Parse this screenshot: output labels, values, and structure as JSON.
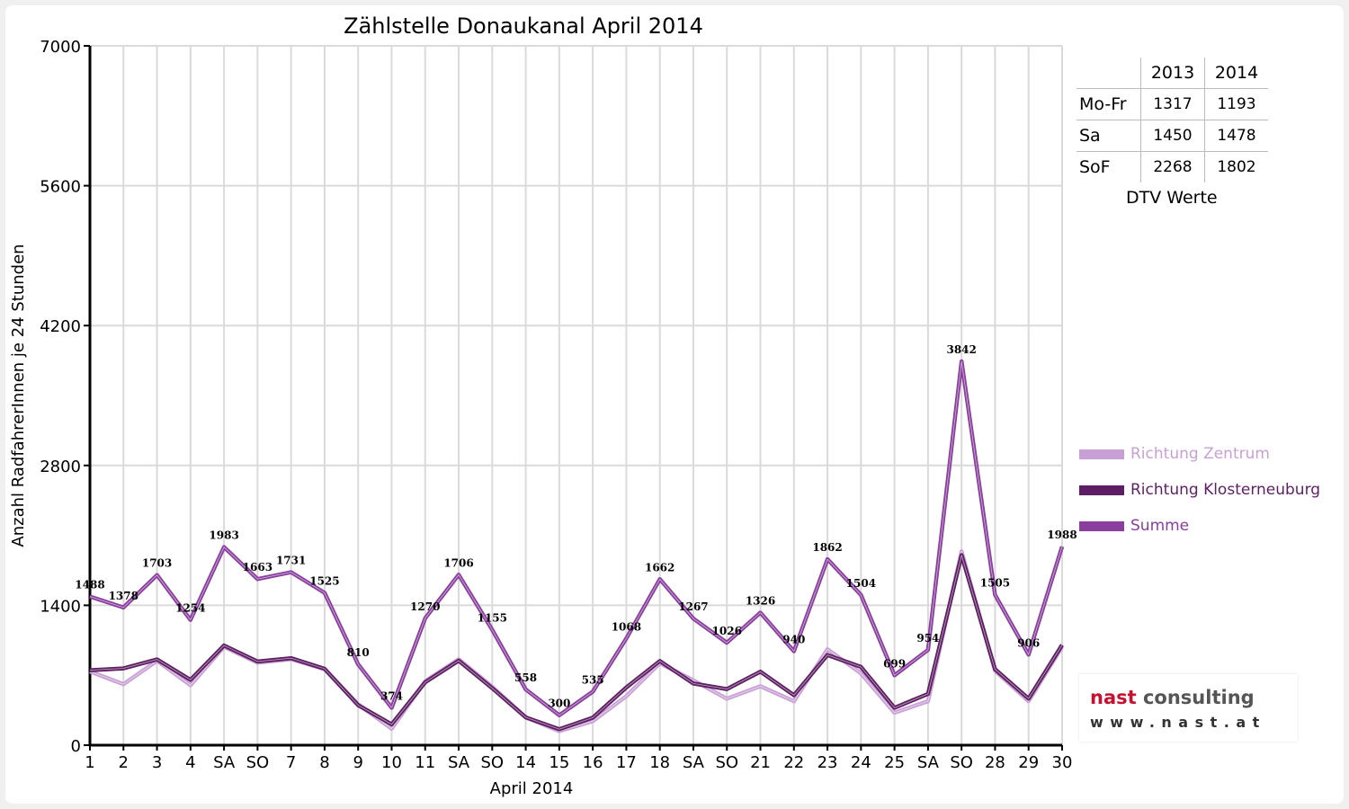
{
  "chart_data": {
    "type": "line",
    "title": "Zählstelle Donaukanal April 2014",
    "xlabel": "April 2014",
    "ylabel": "Anzahl RadfahrerInnen je 24 Stunden",
    "ylim": [
      0,
      7000
    ],
    "yticks": [
      "0",
      "1400",
      "2800",
      "4200",
      "5600",
      "7000"
    ],
    "grid": true,
    "legend_position": "right",
    "categories": [
      "1",
      "2",
      "3",
      "4",
      "SA",
      "SO",
      "7",
      "8",
      "9",
      "10",
      "11",
      "SA",
      "SO",
      "14",
      "15",
      "16",
      "17",
      "18",
      "SA",
      "SO",
      "21",
      "22",
      "23",
      "24",
      "25",
      "SA",
      "SO",
      "28",
      "29",
      "30"
    ],
    "category_colors": [
      "#000000",
      "#000000",
      "#000000",
      "#000000",
      "#000000",
      "#dd0000",
      "#000000",
      "#000000",
      "#000000",
      "#000000",
      "#000000",
      "#000000",
      "#dd0000",
      "#000000",
      "#000000",
      "#000000",
      "#000000",
      "#000000",
      "#000000",
      "#dd0000",
      "#dd0000",
      "#000000",
      "#000000",
      "#000000",
      "#000000",
      "#000000",
      "#dd0000",
      "#000000",
      "#000000",
      "#000000"
    ],
    "series": [
      {
        "name": "Richtung Zentrum",
        "color": "#c9a0d6",
        "values": [
          738,
          610,
          845,
          600,
          985,
          825,
          860,
          760,
          410,
          165,
          640,
          860,
          585,
          280,
          140,
          240,
          490,
          820,
          650,
          465,
          590,
          440,
          960,
          720,
          325,
          440,
          1940,
          745,
          440,
          985
        ]
      },
      {
        "name": "Richtung Klosterneuburg",
        "color": "#5e1e63",
        "values": [
          750,
          768,
          858,
          654,
          998,
          838,
          871,
          765,
          400,
          209,
          630,
          846,
          570,
          278,
          160,
          275,
          578,
          842,
          617,
          561,
          736,
          500,
          902,
          784,
          374,
          514,
          1902,
          760,
          466,
          1003
        ]
      },
      {
        "name": "Summe",
        "color": "#8a3e9e",
        "values": [
          1488,
          1378,
          1703,
          1254,
          1983,
          1663,
          1731,
          1525,
          810,
          374,
          1270,
          1706,
          1155,
          558,
          300,
          535,
          1068,
          1662,
          1267,
          1026,
          1326,
          940,
          1862,
          1504,
          699,
          954,
          3842,
          1505,
          906,
          1988
        ]
      }
    ],
    "data_labels": [
      "1488",
      "1378",
      "1703",
      "1254",
      "1983",
      "1663",
      "1731",
      "1525",
      "810",
      "374",
      "1270",
      "1706",
      "1155",
      "558",
      "300",
      "535",
      "1068",
      "1662",
      "1267",
      "1026",
      "1326",
      "940",
      "1862",
      "1504",
      "699",
      "954",
      "3842",
      "1505",
      "906",
      "1988"
    ]
  },
  "dtv_table": {
    "headers": [
      "",
      "2013",
      "2014"
    ],
    "rows": [
      {
        "label": "Mo-Fr",
        "v2013": "1317",
        "v2014": "1193"
      },
      {
        "label": "Sa",
        "v2013": "1450",
        "v2014": "1478"
      },
      {
        "label": "SoF",
        "v2013": "2268",
        "v2014": "1802"
      }
    ],
    "caption": "DTV Werte"
  },
  "legend": [
    {
      "label": "Richtung Zentrum",
      "color": "#c9a0d6"
    },
    {
      "label": "Richtung Klosterneuburg",
      "color": "#5e1e63"
    },
    {
      "label": "Summe",
      "color": "#8a3e9e"
    }
  ],
  "logo": {
    "brand_nast": "nast",
    "brand_consulting": "consulting",
    "url": "www.nast.at"
  }
}
